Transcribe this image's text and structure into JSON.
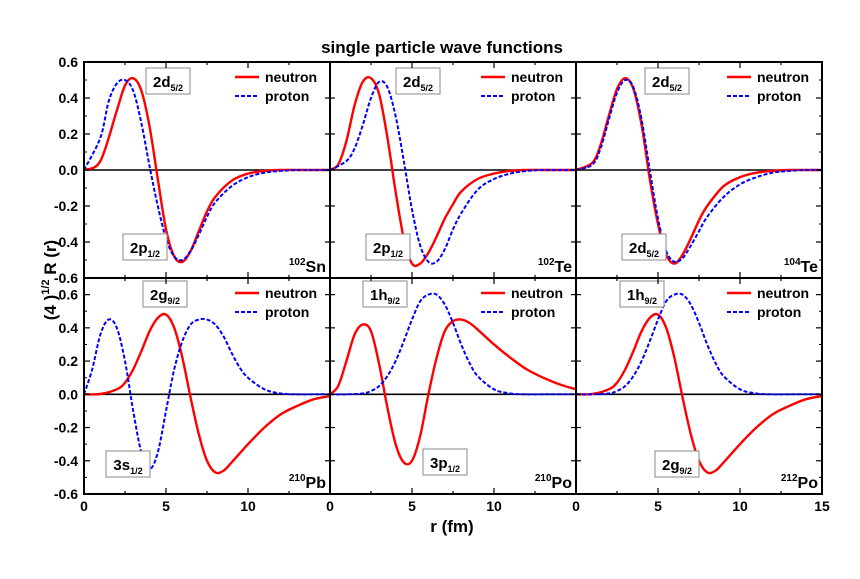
{
  "chart_data": {
    "type": "line",
    "title": "single particle wave functions",
    "xlabel": "r (fm)",
    "ylabel": "(4 )^1/2 R (r)",
    "grid": false,
    "legend_placement": "top-right",
    "xlim": [
      0,
      15
    ],
    "x_ticks": [
      "0",
      "5",
      "10",
      "0",
      "5",
      "10",
      "0",
      "5",
      "10",
      "15"
    ],
    "top_row_ylim": [
      -0.6,
      0.6
    ],
    "top_row_yticks": [
      "0.6",
      "0.4",
      "0.2",
      "0.0",
      "-0.2",
      "-0.4",
      "-0.6"
    ],
    "bottom_row_ylim": [
      -0.6,
      0.7
    ],
    "bottom_row_yticks": [
      "0.6",
      "0.4",
      "0.2",
      "0.0",
      "-0.2",
      "-0.4",
      "-0.6"
    ],
    "legend": [
      {
        "name": "neutron",
        "color": "#ff0000",
        "style": "solid"
      },
      {
        "name": "proton",
        "color": "#0000ff",
        "style": "dotted"
      }
    ],
    "panels": [
      {
        "nucleus_mass": "102",
        "nucleus_symbol": "Sn",
        "state_labels": [
          {
            "base": "2d",
            "sub": "5/2"
          },
          {
            "base": "2p",
            "sub": "1/2"
          }
        ],
        "series": [
          {
            "name": "neutron",
            "x": [
              0,
              1,
              2,
              2.5,
              3,
              3.5,
              4,
              4.5,
              5,
              5.5,
              6,
              6.5,
              7,
              7.5,
              8,
              9,
              10,
              11,
              12,
              13,
              14,
              15
            ],
            "values": [
              0,
              0.05,
              0.33,
              0.47,
              0.51,
              0.44,
              0.24,
              -0.05,
              -0.33,
              -0.48,
              -0.51,
              -0.45,
              -0.34,
              -0.23,
              -0.15,
              -0.06,
              -0.02,
              -0.005,
              0,
              0,
              0,
              0
            ]
          },
          {
            "name": "proton",
            "x": [
              0,
              1,
              1.5,
              2,
              2.5,
              3,
              3.5,
              4,
              4.5,
              5,
              5.5,
              6,
              6.5,
              7,
              7.5,
              8,
              9,
              10,
              11,
              12,
              13,
              14,
              15
            ],
            "values": [
              0,
              0.18,
              0.38,
              0.48,
              0.5,
              0.44,
              0.26,
              0.02,
              -0.2,
              -0.38,
              -0.48,
              -0.5,
              -0.45,
              -0.36,
              -0.26,
              -0.18,
              -0.09,
              -0.04,
              -0.015,
              -0.005,
              0,
              0,
              0
            ]
          }
        ]
      },
      {
        "nucleus_mass": "102",
        "nucleus_symbol": "Te",
        "state_labels": [
          {
            "base": "2d",
            "sub": "5/2"
          },
          {
            "base": "2p",
            "sub": "1/2"
          }
        ],
        "series": [
          {
            "name": "neutron",
            "x": [
              0,
              0.5,
              1,
              1.5,
              2,
              2.5,
              3,
              3.5,
              4,
              4.5,
              5,
              5.5,
              6,
              6.5,
              7,
              7.5,
              8,
              9,
              10,
              11,
              12,
              13,
              14,
              15
            ],
            "values": [
              0,
              0.03,
              0.16,
              0.36,
              0.49,
              0.51,
              0.42,
              0.18,
              -0.12,
              -0.38,
              -0.52,
              -0.52,
              -0.46,
              -0.37,
              -0.27,
              -0.19,
              -0.12,
              -0.05,
              -0.02,
              -0.005,
              0,
              0,
              0,
              0
            ]
          },
          {
            "name": "proton",
            "x": [
              0,
              1,
              1.5,
              2,
              2.5,
              3,
              3.5,
              4,
              4.5,
              5,
              5.5,
              6,
              6.5,
              7,
              7.5,
              8,
              9,
              10,
              11,
              12,
              13,
              14,
              15
            ],
            "values": [
              0,
              0.05,
              0.12,
              0.25,
              0.4,
              0.49,
              0.46,
              0.3,
              0.05,
              -0.22,
              -0.42,
              -0.51,
              -0.51,
              -0.44,
              -0.33,
              -0.24,
              -0.11,
              -0.05,
              -0.02,
              -0.005,
              0,
              0,
              0
            ]
          }
        ]
      },
      {
        "nucleus_mass": "104",
        "nucleus_symbol": "Te",
        "state_labels": [
          {
            "base": "2d",
            "sub": "5/2"
          },
          {
            "base": "2d",
            "sub": "5/2"
          }
        ],
        "series": [
          {
            "name": "neutron",
            "x": [
              0,
              1,
              1.5,
              2,
              2.5,
              3,
              3.5,
              4,
              4.5,
              5,
              5.5,
              6,
              6.5,
              7,
              7.5,
              8,
              9,
              10,
              11,
              12,
              13,
              14,
              15
            ],
            "values": [
              0,
              0.04,
              0.14,
              0.3,
              0.45,
              0.51,
              0.45,
              0.25,
              -0.05,
              -0.3,
              -0.47,
              -0.52,
              -0.47,
              -0.38,
              -0.28,
              -0.2,
              -0.09,
              -0.04,
              -0.015,
              -0.005,
              0,
              0,
              0
            ]
          },
          {
            "name": "proton",
            "x": [
              0,
              1,
              1.5,
              2,
              2.5,
              3,
              3.5,
              4,
              4.5,
              5,
              5.5,
              6,
              6.5,
              7,
              7.5,
              8,
              9,
              10,
              11,
              12,
              13,
              14,
              15
            ],
            "values": [
              0,
              0.03,
              0.12,
              0.28,
              0.43,
              0.5,
              0.46,
              0.28,
              0.0,
              -0.27,
              -0.45,
              -0.51,
              -0.49,
              -0.42,
              -0.34,
              -0.26,
              -0.15,
              -0.08,
              -0.04,
              -0.015,
              -0.005,
              0,
              0
            ]
          }
        ]
      },
      {
        "nucleus_mass": "210",
        "nucleus_symbol": "Pb",
        "state_labels": [
          {
            "base": "2g",
            "sub": "9/2"
          },
          {
            "base": "3s",
            "sub": "1/2"
          }
        ],
        "series": [
          {
            "name": "neutron",
            "x": [
              0,
              1,
              2,
              2.5,
              3,
              3.5,
              4,
              4.5,
              5,
              5.5,
              6,
              6.5,
              7,
              7.5,
              8,
              8.5,
              9,
              10,
              11,
              12,
              13,
              14,
              15
            ],
            "values": [
              0,
              0.002,
              0.03,
              0.07,
              0.15,
              0.26,
              0.38,
              0.46,
              0.48,
              0.4,
              0.22,
              -0.02,
              -0.24,
              -0.4,
              -0.47,
              -0.46,
              -0.41,
              -0.3,
              -0.2,
              -0.12,
              -0.07,
              -0.03,
              -0.01
            ]
          },
          {
            "name": "proton",
            "x": [
              0,
              0.5,
              1,
              1.5,
              2,
              2.5,
              3,
              3.5,
              4,
              4.5,
              5,
              5.5,
              6,
              6.5,
              7,
              7.5,
              8,
              8.5,
              9,
              9.5,
              10,
              11,
              12,
              13,
              14,
              15
            ],
            "values": [
              0,
              0.15,
              0.36,
              0.45,
              0.4,
              0.2,
              -0.1,
              -0.35,
              -0.45,
              -0.35,
              -0.1,
              0.15,
              0.32,
              0.42,
              0.45,
              0.45,
              0.42,
              0.35,
              0.25,
              0.16,
              0.1,
              0.03,
              0.005,
              0,
              0,
              0
            ]
          }
        ]
      },
      {
        "nucleus_mass": "210",
        "nucleus_symbol": "Po",
        "state_labels": [
          {
            "base": "1h",
            "sub": "9/2"
          },
          {
            "base": "3p",
            "sub": "1/2"
          }
        ],
        "series": [
          {
            "name": "neutron",
            "x": [
              0,
              0.5,
              1,
              1.5,
              2,
              2.5,
              3,
              3.5,
              4,
              4.5,
              5,
              5.5,
              6,
              6.5,
              7,
              7.5,
              8,
              8.5,
              9,
              10,
              11,
              12,
              13,
              14,
              15
            ],
            "values": [
              0,
              0.05,
              0.2,
              0.36,
              0.42,
              0.38,
              0.18,
              -0.08,
              -0.3,
              -0.41,
              -0.4,
              -0.25,
              0.0,
              0.22,
              0.38,
              0.44,
              0.45,
              0.43,
              0.39,
              0.3,
              0.22,
              0.15,
              0.1,
              0.06,
              0.03
            ]
          },
          {
            "name": "proton",
            "x": [
              0,
              1,
              2,
              2.5,
              3,
              3.5,
              4,
              4.5,
              5,
              5.5,
              6,
              6.5,
              7,
              7.5,
              8,
              8.5,
              9,
              10,
              11,
              12,
              13,
              14,
              15
            ],
            "values": [
              0,
              0.0,
              0.005,
              0.02,
              0.05,
              0.11,
              0.2,
              0.32,
              0.45,
              0.56,
              0.6,
              0.6,
              0.54,
              0.43,
              0.3,
              0.19,
              0.11,
              0.03,
              0.005,
              0,
              0,
              0,
              0
            ]
          }
        ]
      },
      {
        "nucleus_mass": "212",
        "nucleus_symbol": "Po",
        "state_labels": [
          {
            "base": "1h",
            "sub": "9/2"
          },
          {
            "base": "2g",
            "sub": "9/2"
          }
        ],
        "series": [
          {
            "name": "neutron",
            "x": [
              0,
              1,
              2,
              2.5,
              3,
              3.5,
              4,
              4.5,
              5,
              5.5,
              6,
              6.5,
              7,
              7.5,
              8,
              8.5,
              9,
              10,
              11,
              12,
              13,
              14,
              15
            ],
            "values": [
              0,
              0.002,
              0.03,
              0.07,
              0.15,
              0.26,
              0.38,
              0.46,
              0.48,
              0.4,
              0.22,
              -0.02,
              -0.24,
              -0.4,
              -0.47,
              -0.46,
              -0.41,
              -0.3,
              -0.2,
              -0.12,
              -0.07,
              -0.03,
              -0.01
            ]
          },
          {
            "name": "proton",
            "x": [
              0,
              1,
              2,
              2.5,
              3,
              3.5,
              4,
              4.5,
              5,
              5.5,
              6,
              6.5,
              7,
              7.5,
              8,
              8.5,
              9,
              10,
              11,
              12,
              13,
              14,
              15
            ],
            "values": [
              0,
              0.0,
              0.005,
              0.02,
              0.05,
              0.11,
              0.2,
              0.32,
              0.45,
              0.56,
              0.6,
              0.6,
              0.54,
              0.43,
              0.3,
              0.19,
              0.11,
              0.03,
              0.005,
              0,
              0,
              0,
              0
            ]
          }
        ]
      }
    ]
  }
}
